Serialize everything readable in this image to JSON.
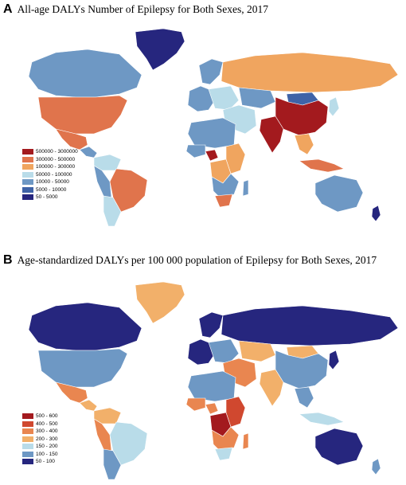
{
  "panel_a": {
    "letter": "A",
    "title": "All-age DALYs Number of Epilepsy for Both Sexes, 2017",
    "legend": [
      {
        "label": "500000 - 3000000",
        "color": "#a31a1e"
      },
      {
        "label": "300000 - 500000",
        "color": "#e0744c"
      },
      {
        "label": "100000 - 300000",
        "color": "#f0a55f"
      },
      {
        "label": "50000 - 100000",
        "color": "#b9dce9"
      },
      {
        "label": "10000 - 50000",
        "color": "#6e98c4"
      },
      {
        "label": "5000 - 10000",
        "color": "#3f63a7"
      },
      {
        "label": "50 - 5000",
        "color": "#26267e"
      }
    ],
    "regions": {
      "greenland": "#26267e",
      "canada": "#6e98c4",
      "usa": "#e0744c",
      "mexico": "#e0744c",
      "central_america": "#6e98c4",
      "colombia_venezuela": "#b9dce9",
      "brazil": "#e0744c",
      "andes": "#6e98c4",
      "argentina_chile": "#b9dce9",
      "europe_west": "#6e98c4",
      "scandinavia": "#6e98c4",
      "eastern_europe": "#b9dce9",
      "russia": "#f0a55f",
      "kazakhstan": "#6e98c4",
      "mongolia": "#3f63a7",
      "middle_east": "#b9dce9",
      "china": "#a31a1e",
      "india": "#a31a1e",
      "southeast_asia": "#f0a55f",
      "indonesia": "#e0744c",
      "north_africa": "#6e98c4",
      "nigeria": "#a31a1e",
      "west_africa": "#6e98c4",
      "congo": "#f0a55f",
      "east_africa": "#f0a55f",
      "southern_africa": "#6e98c4",
      "south_africa": "#e0744c",
      "madagascar": "#6e98c4",
      "australia": "#6e98c4",
      "new_zealand": "#26267e",
      "japan": "#b9dce9"
    }
  },
  "panel_b": {
    "letter": "B",
    "title": "Age-standardized DALYs per 100 000 population of Epilepsy for Both Sexes, 2017",
    "legend": [
      {
        "label": "500 - 600",
        "color": "#a31a1e"
      },
      {
        "label": "400 - 500",
        "color": "#d0482f"
      },
      {
        "label": "300 - 400",
        "color": "#e98650"
      },
      {
        "label": "200 - 300",
        "color": "#f2b06a"
      },
      {
        "label": "150 - 200",
        "color": "#b9dce9"
      },
      {
        "label": "100 - 150",
        "color": "#6e98c4"
      },
      {
        "label": "50 - 100",
        "color": "#26267e"
      }
    ],
    "regions": {
      "greenland": "#f2b06a",
      "canada": "#26267e",
      "usa": "#6e98c4",
      "mexico": "#e98650",
      "central_america": "#f2b06a",
      "colombia_venezuela": "#f2b06a",
      "brazil": "#b9dce9",
      "andes": "#e98650",
      "argentina_chile": "#6e98c4",
      "europe_west": "#26267e",
      "scandinavia": "#26267e",
      "eastern_europe": "#6e98c4",
      "russia": "#26267e",
      "kazakhstan": "#f2b06a",
      "mongolia": "#f2b06a",
      "middle_east": "#e98650",
      "china": "#6e98c4",
      "india": "#f2b06a",
      "southeast_asia": "#6e98c4",
      "indonesia": "#b9dce9",
      "north_africa": "#6e98c4",
      "nigeria": "#e98650",
      "west_africa": "#e98650",
      "congo": "#a31a1e",
      "east_africa": "#d0482f",
      "southern_africa": "#e98650",
      "south_africa": "#b9dce9",
      "madagascar": "#e98650",
      "australia": "#26267e",
      "new_zealand": "#6e98c4",
      "japan": "#26267e"
    }
  }
}
